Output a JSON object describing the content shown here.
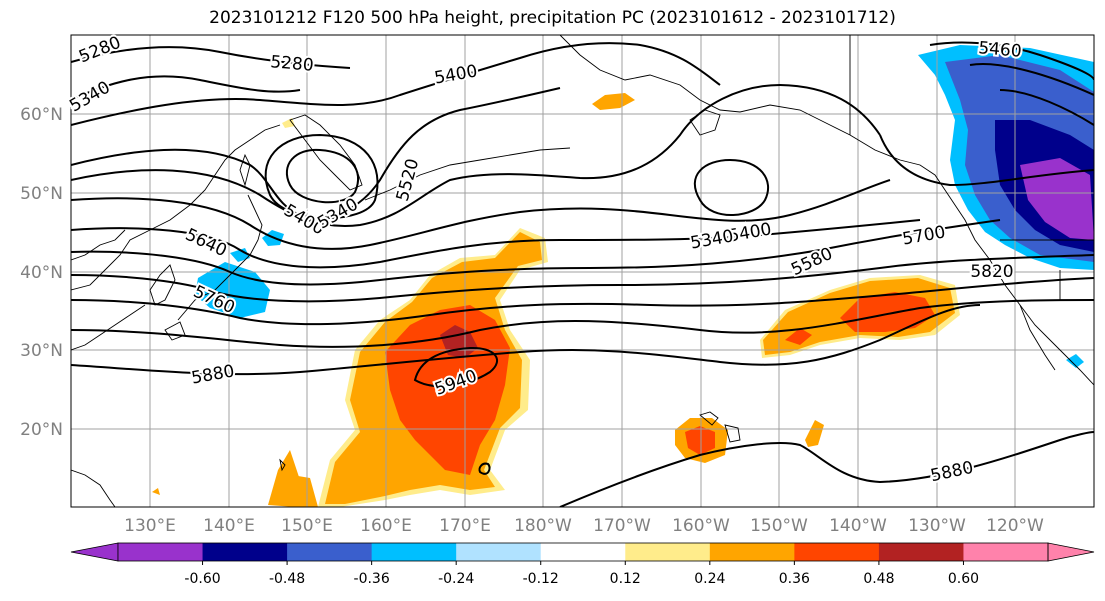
{
  "title": "2023101212 F120 500 hPa height, precipitation PC (2023101612 - 2023101712)",
  "map": {
    "latitude_labels": [
      "60°N",
      "50°N",
      "40°N",
      "30°N",
      "20°N"
    ],
    "longitude_labels": [
      "130°E",
      "140°E",
      "150°E",
      "160°E",
      "170°E",
      "180°W",
      "170°W",
      "160°W",
      "150°W",
      "140°W",
      "130°W",
      "120°W"
    ],
    "contour_labels": [
      "5280",
      "5280",
      "5340",
      "5400",
      "5460",
      "5400",
      "5340",
      "5520",
      "5400",
      "5340",
      "5640",
      "5580",
      "5700",
      "5820",
      "5760",
      "5880",
      "5940",
      "5880"
    ],
    "grid_color": "#a0a0a0",
    "axis_label_color": "#808080",
    "contour_color": "#000000"
  },
  "colorbar": {
    "tick_labels": [
      "-0.60",
      "-0.48",
      "-0.36",
      "-0.24",
      "-0.12",
      "0.12",
      "0.24",
      "0.36",
      "0.48",
      "0.60"
    ],
    "colors": [
      "#9932cc",
      "#00008b",
      "#3a5fcd",
      "#00bfff",
      "#b0e2ff",
      "#ffffff",
      "#ffec8b",
      "#ffa500",
      "#ff4500",
      "#b22222",
      "#ff82ab"
    ],
    "extend": "both"
  }
}
